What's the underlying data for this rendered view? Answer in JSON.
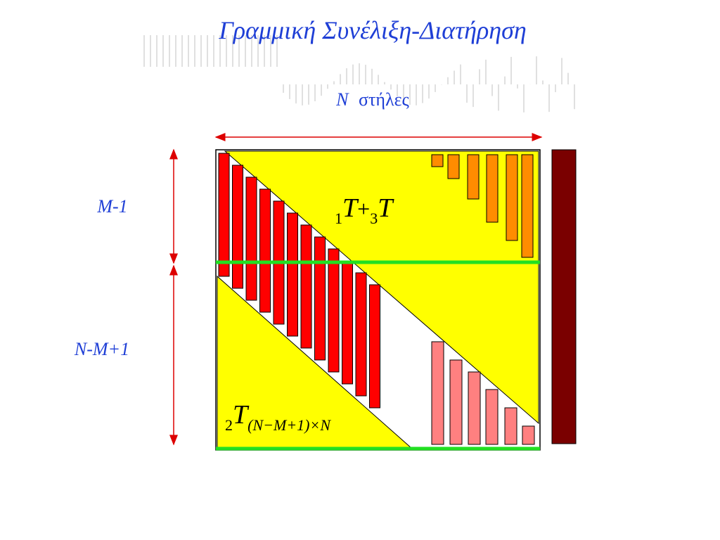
{
  "title": "Γραμμική Συνέλιξη-Διατήρηση",
  "columns_label": {
    "symbol": "N",
    "text": "στήλες"
  },
  "row_labels": [
    "M-1",
    "N-M+1"
  ],
  "upper_label": [
    "1",
    "T",
    "+",
    "3",
    "T"
  ],
  "lower_label": [
    "2",
    "T",
    "(N−M+1)×N"
  ]
}
